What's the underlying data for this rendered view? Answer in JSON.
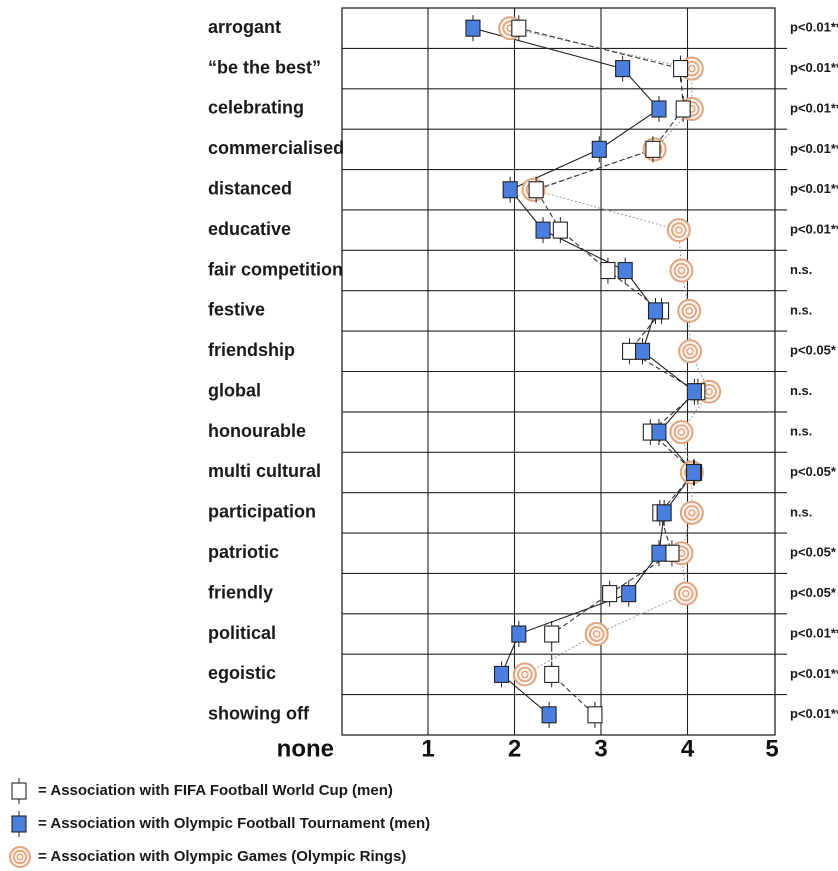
{
  "chart_data": {
    "type": "scatter",
    "categories": [
      "arrogant",
      "“be the best”",
      "celebrating",
      "commercialised",
      "distanced",
      "educative",
      "fair competition",
      "festive",
      "friendship",
      "global",
      "honourable",
      "multi cultural",
      "participation",
      "patriotic",
      "friendly",
      "political",
      "egoistic",
      "showing off"
    ],
    "x_ticks": [
      "none",
      "1",
      "2",
      "3",
      "4",
      "5"
    ],
    "xlim": [
      0,
      5
    ],
    "grid": true,
    "significance": [
      "p<0.01**",
      "p<0.01**",
      "p<0.01**",
      "p<0.01**",
      "p<0.01**",
      "p<0.01**",
      "n.s.",
      "n.s.",
      "p<0.05*",
      "n.s.",
      "n.s.",
      "p<0.05*",
      "n.s.",
      "p<0.05*",
      "p<0.05*",
      "p<0.01**",
      "p<0.01**",
      "p<0.01**"
    ],
    "series": [
      {
        "name": "= Association with FIFA Football World Cup (men)",
        "marker": "open-square",
        "values": [
          2.05,
          3.92,
          3.95,
          3.6,
          2.25,
          2.53,
          3.08,
          3.7,
          3.33,
          4.12,
          3.57,
          4.08,
          3.68,
          3.82,
          3.1,
          2.43,
          2.43,
          2.93
        ]
      },
      {
        "name": "= Association with Olympic Football Tournament (men)",
        "marker": "filled-square",
        "values": [
          1.52,
          3.25,
          3.67,
          2.98,
          1.95,
          2.33,
          3.28,
          3.63,
          3.48,
          4.08,
          3.67,
          4.07,
          3.73,
          3.67,
          3.32,
          2.05,
          1.85,
          2.4
        ]
      },
      {
        "name": "= Association with Olympic Games (Olympic Rings)",
        "marker": "rings",
        "values": [
          1.95,
          4.05,
          4.05,
          3.62,
          2.22,
          3.9,
          3.93,
          4.02,
          4.03,
          4.25,
          3.93,
          4.05,
          4.05,
          3.93,
          3.98,
          2.95,
          2.12,
          null
        ]
      }
    ],
    "colors": {
      "olympic_football": "#4a7fe0",
      "olympic_rings": "#e0a47e",
      "fifa": "#ffffff",
      "line": "#1a1a1a"
    }
  }
}
